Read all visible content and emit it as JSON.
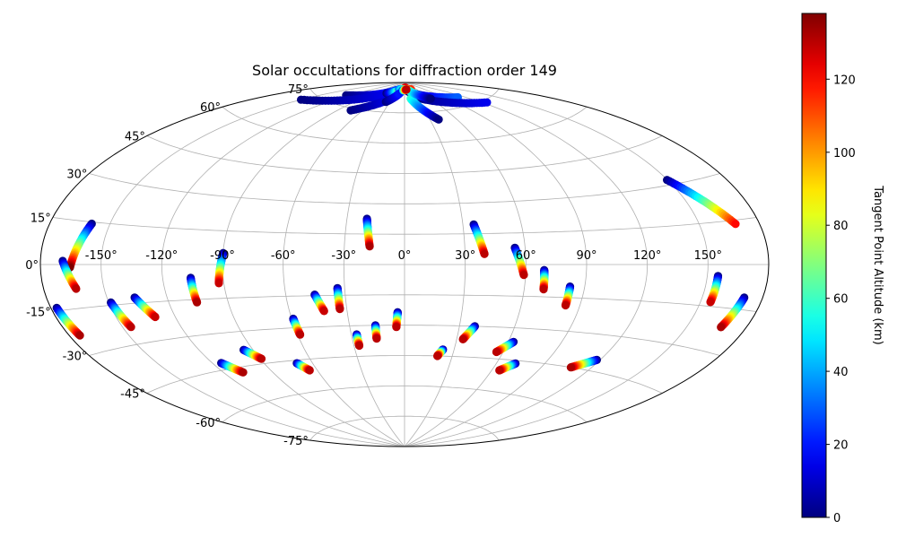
{
  "chart_data": {
    "type": "scatter",
    "projection": "aitoff",
    "title": "Solar occultations for diffraction order 149",
    "xlabel": "",
    "ylabel": "",
    "grid": true,
    "lon_ticks": [
      "-150°",
      "-120°",
      "-90°",
      "-60°",
      "-30°",
      "0°",
      "30°",
      "60°",
      "90°",
      "120°",
      "150°"
    ],
    "lat_ticks": [
      "75°",
      "60°",
      "45°",
      "30°",
      "15°",
      "0°",
      "-15°",
      "-30°",
      "-45°",
      "-60°",
      "-75°"
    ],
    "colorbar": {
      "label": "Tangent Point Altitude (km)",
      "range": [
        0,
        138
      ],
      "ticks": [
        "0",
        "20",
        "40",
        "60",
        "80",
        "100",
        "120"
      ],
      "colormap": "jet"
    },
    "color_units": "km",
    "tracks": [
      {
        "lon_start": -159.1,
        "lat_start": 14.4,
        "lon_end": -165.4,
        "lat_end": -1.0,
        "alt_start": 0,
        "alt_end": 138
      },
      {
        "lon_start": -169.0,
        "lat_start": 1.2,
        "lon_end": -163.9,
        "lat_end": -8.3,
        "alt_start": 0,
        "alt_end": 130
      },
      {
        "lon_start": -177.1,
        "lat_start": -14.0,
        "lon_end": -174.7,
        "lat_end": -23.6,
        "alt_start": 0,
        "alt_end": 132
      },
      {
        "lon_start": -149.0,
        "lat_start": -14.0,
        "lon_end": -145.7,
        "lat_end": -23.6,
        "alt_start": 0,
        "alt_end": 130
      },
      {
        "lon_start": -136.2,
        "lat_start": -12.8,
        "lon_end": -130.2,
        "lat_end": -20.9,
        "alt_start": 0,
        "alt_end": 128
      },
      {
        "lon_start": -106.1,
        "lat_start": -5.7,
        "lon_end": -105.8,
        "lat_end": -16.2,
        "alt_start": 0,
        "alt_end": 132
      },
      {
        "lon_start": -89.9,
        "lat_start": 5.1,
        "lon_end": -92.5,
        "lat_end": -8.3,
        "alt_start": 0,
        "alt_end": 128
      },
      {
        "lon_start": -95.3,
        "lat_start": -38.1,
        "lon_end": -89.2,
        "lat_end": -42.8,
        "alt_start": 0,
        "alt_end": 130
      },
      {
        "lon_start": -115.0,
        "lat_start": -42.2,
        "lon_end": -108.3,
        "lat_end": -47.3,
        "alt_start": 0,
        "alt_end": 132
      },
      {
        "lon_start": -69.9,
        "lat_start": -46.4,
        "lon_end": -65.0,
        "lat_end": -50.2,
        "alt_start": 0,
        "alt_end": 130
      },
      {
        "lon_start": -59.2,
        "lat_start": -25.7,
        "lon_end": -58.6,
        "lat_end": -33.3,
        "alt_start": 0,
        "alt_end": 130
      },
      {
        "lon_start": -45.4,
        "lat_start": -14.5,
        "lon_end": -42.0,
        "lat_end": -22.5,
        "alt_start": 0,
        "alt_end": 128
      },
      {
        "lon_start": -33.6,
        "lat_start": -11.5,
        "lon_end": -33.6,
        "lat_end": -21.7,
        "alt_start": 0,
        "alt_end": 130
      },
      {
        "lon_start": -27.0,
        "lat_start": -34.3,
        "lon_end": -26.9,
        "lat_end": -39.8,
        "alt_start": 0,
        "alt_end": 130
      },
      {
        "lon_start": -15.9,
        "lat_start": -30.0,
        "lon_end": -16.0,
        "lat_end": -36.5,
        "alt_start": 0,
        "alt_end": 130
      },
      {
        "lon_start": -3.6,
        "lat_start": -23.6,
        "lon_end": -4.5,
        "lat_end": -30.9,
        "alt_start": 0,
        "alt_end": 130
      },
      {
        "lon_start": -19.6,
        "lat_start": 22.5,
        "lon_end": -17.4,
        "lat_end": 8.9,
        "alt_start": 0,
        "alt_end": 132
      },
      {
        "lon_start": 35.6,
        "lat_start": 19.5,
        "lon_end": 39.6,
        "lat_end": 5.1,
        "alt_start": 0,
        "alt_end": 130
      },
      {
        "lon_start": 54.9,
        "lat_start": 8.0,
        "lon_end": 59.1,
        "lat_end": -4.9,
        "alt_start": 0,
        "alt_end": 130
      },
      {
        "lon_start": 69.1,
        "lat_start": -2.6,
        "lon_end": 69.7,
        "lat_end": -11.5,
        "alt_start": 0,
        "alt_end": 130
      },
      {
        "lon_start": 82.7,
        "lat_start": -10.0,
        "lon_end": 82.7,
        "lat_end": -18.5,
        "alt_start": 0,
        "alt_end": 130
      },
      {
        "lon_start": 155.3,
        "lat_start": -4.1,
        "lon_end": 155.0,
        "lat_end": -13.5,
        "alt_start": 0,
        "alt_end": 128
      },
      {
        "lon_start": 170.9,
        "lat_start": -11.0,
        "lon_end": 167.3,
        "lat_end": -21.5,
        "alt_start": 0,
        "alt_end": 132
      },
      {
        "lon_start": 149.7,
        "lat_start": 31.9,
        "lon_end": 168.1,
        "lat_end": 13.7,
        "alt_start": 0,
        "alt_end": 120
      },
      {
        "lon_start": 38.4,
        "lat_start": -30.0,
        "lon_end": 33.6,
        "lat_end": -36.5,
        "alt_start": 0,
        "alt_end": 130
      },
      {
        "lon_start": 23.3,
        "lat_start": -41.8,
        "lon_end": 20.7,
        "lat_end": -45.0,
        "alt_start": 0,
        "alt_end": 130
      },
      {
        "lon_start": 63.0,
        "lat_start": -36.6,
        "lon_end": 56.0,
        "lat_end": -41.8,
        "alt_start": 0,
        "alt_end": 130
      },
      {
        "lon_start": 72.1,
        "lat_start": -46.4,
        "lon_end": 65.0,
        "lat_end": -50.2,
        "alt_start": 0,
        "alt_end": 130
      },
      {
        "lon_start": 118.1,
        "lat_start": -40.4,
        "lon_end": 107.8,
        "lat_end": -45.0,
        "alt_start": 0,
        "alt_end": 132
      },
      {
        "lon_start": -125.0,
        "lat_start": 79.0,
        "lon_end": -40.0,
        "lat_end": 86.0,
        "alt_start": 0,
        "alt_end": 25
      },
      {
        "lon_start": -150.0,
        "lat_start": 72.0,
        "lon_end": -55.0,
        "lat_end": 84.0,
        "alt_start": 0,
        "alt_end": 15
      },
      {
        "lon_start": -75.0,
        "lat_start": 74.0,
        "lon_end": -5.0,
        "lat_end": 87.0,
        "alt_start": 0,
        "alt_end": 25
      },
      {
        "lon_start": -60.0,
        "lat_start": 84.0,
        "lon_end": 5.0,
        "lat_end": 87.5,
        "alt_start": 0,
        "alt_end": 125
      },
      {
        "lon_start": -30.0,
        "lat_start": 86.5,
        "lon_end": 35.0,
        "lat_end": 86.5,
        "alt_start": 30,
        "alt_end": 115
      },
      {
        "lon_start": 15.0,
        "lat_start": 85.5,
        "lon_end": 110.0,
        "lat_end": 79.0,
        "alt_start": 0,
        "alt_end": 30
      },
      {
        "lon_start": 30.0,
        "lat_start": 82.5,
        "lon_end": 125.0,
        "lat_end": 74.0,
        "alt_start": 0,
        "alt_end": 15
      },
      {
        "lon_start": 15.0,
        "lat_start": 82.0,
        "lon_end": 40.0,
        "lat_end": 71.0,
        "alt_start": 60,
        "alt_end": 0
      },
      {
        "lon_start": 20.0,
        "lat_start": 86.0,
        "lon_end": 60.0,
        "lat_end": 81.0,
        "alt_start": 70,
        "alt_end": 0
      },
      {
        "lon_start": -38.0,
        "lat_start": 80.0,
        "lon_end": -18.0,
        "lat_end": 84.5,
        "alt_start": 0,
        "alt_end": 20
      },
      {
        "lon_start": -10.0,
        "lat_start": 86.0,
        "lon_end": 10.0,
        "lat_end": 86.5,
        "alt_start": 10,
        "alt_end": 130
      }
    ]
  }
}
